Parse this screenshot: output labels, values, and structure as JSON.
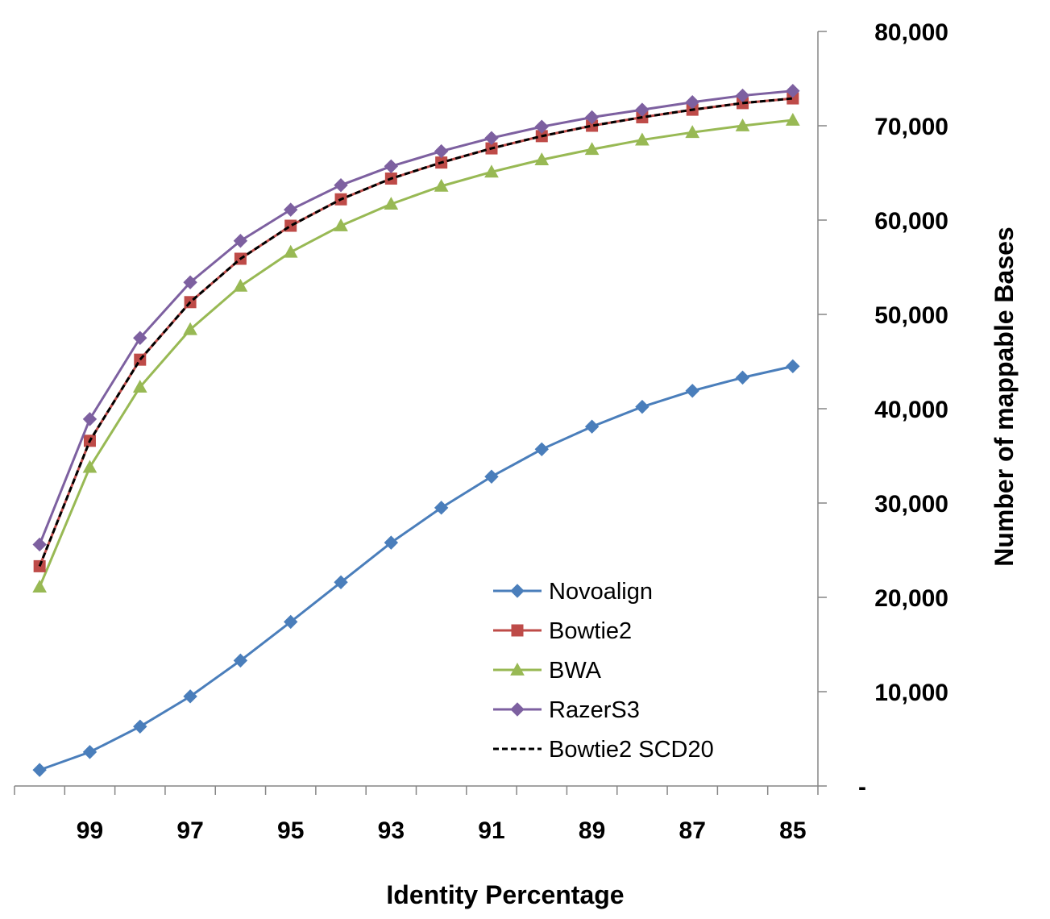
{
  "chart_data": {
    "type": "line",
    "title": "",
    "xlabel": "Identity Percentage",
    "ylabel": "Number of mappable Bases",
    "x": [
      100,
      99,
      98,
      97,
      96,
      95,
      94,
      93,
      92,
      91,
      90,
      89,
      88,
      87,
      86,
      85
    ],
    "x_tick_labels": [
      "99",
      "97",
      "95",
      "93",
      "91",
      "89",
      "87",
      "85"
    ],
    "x_reversed": true,
    "ylim": [
      0,
      80000
    ],
    "y_tick_labels": [
      "-",
      "10,000",
      "20,000",
      "30,000",
      "40,000",
      "50,000",
      "60,000",
      "70,000",
      "80,000"
    ],
    "y_axis_position": "right",
    "grid": false,
    "legend_position": "lower-right inside plot",
    "series": [
      {
        "name": "Novoalign",
        "color": "#4a7ebb",
        "marker": "diamond",
        "dash": false,
        "values": [
          1700,
          3600,
          6300,
          9500,
          13300,
          17400,
          21600,
          25800,
          29500,
          32800,
          35700,
          38100,
          40200,
          41900,
          43300,
          44500
        ]
      },
      {
        "name": "Bowtie2",
        "color": "#be4b48",
        "marker": "square",
        "dash": false,
        "values": [
          23300,
          36600,
          45200,
          51300,
          55900,
          59400,
          62200,
          64400,
          66100,
          67600,
          68900,
          70000,
          70900,
          71700,
          72400,
          72900
        ]
      },
      {
        "name": "BWA",
        "color": "#98b954",
        "marker": "triangle",
        "dash": false,
        "values": [
          21100,
          33800,
          42300,
          48400,
          53000,
          56600,
          59400,
          61700,
          63600,
          65100,
          66400,
          67500,
          68500,
          69300,
          70000,
          70600
        ]
      },
      {
        "name": "RazerS3",
        "color": "#7d60a0",
        "marker": "diamond",
        "dash": false,
        "values": [
          25600,
          38900,
          47500,
          53400,
          57800,
          61100,
          63700,
          65700,
          67300,
          68700,
          69900,
          70900,
          71700,
          72500,
          73200,
          73700
        ]
      },
      {
        "name": "Bowtie2 SCD20",
        "color": "#000000",
        "marker": "none",
        "dash": true,
        "values": [
          23300,
          36600,
          45200,
          51300,
          55900,
          59400,
          62200,
          64400,
          66100,
          67600,
          68900,
          70000,
          70900,
          71700,
          72400,
          72900
        ]
      }
    ]
  }
}
